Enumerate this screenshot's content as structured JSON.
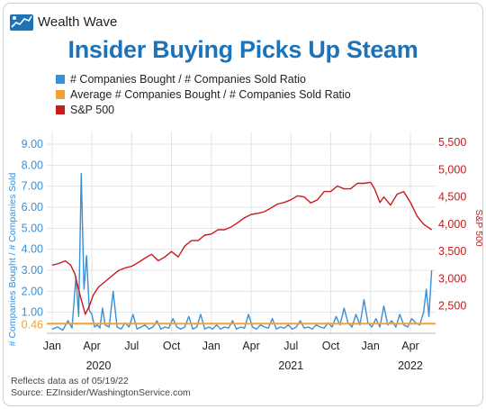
{
  "brand": {
    "name": "Wealth Wave",
    "logo": "wealth-wave-logo"
  },
  "title": "Insider Buying Picks Up Steam",
  "footnotes": {
    "note": "Reflects data as of 05/19/22",
    "source": "Source: EZInsider/WashingtonService.com"
  },
  "colors": {
    "ratio": "#3a8fd6",
    "average": "#f5a031",
    "sp500": "#c91a1a",
    "title": "#1e73b8"
  },
  "chart_data": {
    "type": "line",
    "title": "Insider Buying Picks Up Steam",
    "legend": {
      "placement": "top-left",
      "entries": [
        "# Companies Bought / # Companies Sold Ratio",
        "Average # Companies Bought / # Companies Sold Ratio",
        "S&P 500"
      ]
    },
    "ylabel_left": "# Companies Bought / # Companies Sold",
    "ylabel_right": "S&P 500",
    "y_left_ticks": [
      "9.00",
      "8.00",
      "7.00",
      "6.00",
      "5.00",
      "4.00",
      "3.00",
      "2.00",
      "1.00"
    ],
    "y_left_ticks_values": [
      9,
      8,
      7,
      6,
      5,
      4,
      3,
      2,
      1
    ],
    "y_left_highlight": {
      "label": "0.46",
      "value": 0.46
    },
    "y_right_ticks": [
      "5,500",
      "5,000",
      "4,500",
      "4,000",
      "3,500",
      "3,000",
      "2,500"
    ],
    "y_right_ticks_values": [
      5500,
      5000,
      4500,
      4000,
      3500,
      3000,
      2500
    ],
    "ylim_left": [
      0,
      9.6
    ],
    "ylim_right": [
      2000,
      5700
    ],
    "x_ticks": [
      "Jan",
      "Apr",
      "Jul",
      "Oct",
      "Jan",
      "Apr",
      "Jul",
      "Oct",
      "Jan",
      "Apr"
    ],
    "x_tick_values": [
      0,
      3,
      6,
      9,
      12,
      15,
      18,
      21,
      24,
      27
    ],
    "x_years": [
      {
        "label": "2020",
        "at": 3.5
      },
      {
        "label": "2021",
        "at": 18
      },
      {
        "label": "2022",
        "at": 27
      }
    ],
    "xlim": [
      -0.4,
      28.9
    ],
    "x_unit": "months since Jan 2020",
    "grid": true,
    "series": [
      {
        "name": "S&P 500",
        "axis": "right",
        "x": [
          0,
          0.5,
          1,
          1.4,
          1.7,
          2.1,
          2.5,
          2.8,
          3.1,
          3.5,
          4,
          4.5,
          5,
          5.5,
          6,
          6.5,
          7,
          7.5,
          8,
          8.5,
          9,
          9.5,
          10,
          10.5,
          11,
          11.5,
          12,
          12.5,
          13,
          13.5,
          14,
          14.5,
          15,
          15.5,
          16,
          16.5,
          17,
          17.5,
          18,
          18.5,
          19,
          19.5,
          20,
          20.5,
          21,
          21.5,
          22,
          22.5,
          23,
          23.5,
          24,
          24.3,
          24.7,
          25,
          25.5,
          26,
          26.5,
          27,
          27.5,
          28,
          28.3,
          28.6
        ],
        "values": [
          3250,
          3280,
          3330,
          3250,
          3100,
          2700,
          2350,
          2500,
          2700,
          2850,
          2950,
          3050,
          3150,
          3200,
          3230,
          3300,
          3380,
          3450,
          3330,
          3400,
          3500,
          3400,
          3600,
          3700,
          3700,
          3800,
          3820,
          3900,
          3900,
          3950,
          4030,
          4120,
          4180,
          4200,
          4230,
          4300,
          4370,
          4400,
          4450,
          4520,
          4500,
          4390,
          4450,
          4600,
          4600,
          4700,
          4650,
          4650,
          4750,
          4750,
          4770,
          4650,
          4400,
          4500,
          4350,
          4550,
          4600,
          4400,
          4150,
          4000,
          3950,
          3900
        ]
      },
      {
        "name": "# Companies Bought / # Companies Sold Ratio",
        "axis": "left",
        "x": [
          0,
          0.4,
          0.8,
          1.2,
          1.5,
          1.8,
          2.0,
          2.2,
          2.4,
          2.6,
          2.8,
          3.0,
          3.2,
          3.4,
          3.6,
          3.8,
          4.0,
          4.3,
          4.6,
          4.9,
          5.2,
          5.5,
          5.8,
          6.1,
          6.4,
          6.7,
          7.0,
          7.3,
          7.6,
          7.9,
          8.2,
          8.5,
          8.8,
          9.1,
          9.4,
          9.7,
          10,
          10.3,
          10.6,
          10.9,
          11.2,
          11.5,
          11.8,
          12.1,
          12.4,
          12.7,
          13,
          13.3,
          13.6,
          13.9,
          14.2,
          14.5,
          14.8,
          15.1,
          15.4,
          15.7,
          16,
          16.3,
          16.6,
          16.9,
          17.2,
          17.5,
          17.8,
          18.1,
          18.4,
          18.7,
          19,
          19.3,
          19.6,
          19.9,
          20.2,
          20.5,
          20.8,
          21.1,
          21.4,
          21.7,
          22,
          22.3,
          22.6,
          22.9,
          23.2,
          23.5,
          23.8,
          24.1,
          24.4,
          24.7,
          25,
          25.3,
          25.6,
          25.9,
          26.2,
          26.5,
          26.8,
          27.1,
          27.4,
          27.7,
          28,
          28.2,
          28.4,
          28.6
        ],
        "values": [
          0.2,
          0.3,
          0.15,
          0.6,
          0.25,
          2.7,
          0.8,
          7.6,
          2.1,
          3.7,
          1.1,
          0.9,
          0.3,
          0.4,
          0.25,
          1.2,
          0.4,
          0.3,
          2.0,
          0.3,
          0.2,
          0.5,
          0.3,
          0.9,
          0.2,
          0.3,
          0.4,
          0.2,
          0.3,
          0.6,
          0.2,
          0.3,
          0.25,
          0.7,
          0.3,
          0.2,
          0.3,
          0.8,
          0.2,
          0.3,
          0.9,
          0.2,
          0.3,
          0.2,
          0.4,
          0.2,
          0.3,
          0.25,
          0.6,
          0.2,
          0.3,
          0.25,
          0.9,
          0.3,
          0.2,
          0.4,
          0.3,
          0.25,
          0.7,
          0.2,
          0.3,
          0.25,
          0.4,
          0.2,
          0.3,
          0.6,
          0.25,
          0.3,
          0.2,
          0.4,
          0.3,
          0.25,
          0.5,
          0.3,
          0.8,
          0.4,
          1.2,
          0.5,
          0.3,
          0.9,
          0.4,
          1.6,
          0.5,
          0.3,
          0.7,
          0.3,
          1.3,
          0.4,
          0.6,
          0.3,
          0.9,
          0.4,
          0.3,
          0.7,
          0.5,
          0.4,
          1.0,
          2.1,
          0.8,
          3.0
        ]
      },
      {
        "name": "Average # Companies Bought / # Companies Sold Ratio",
        "axis": "left",
        "x": [
          -0.4,
          28.9
        ],
        "values": [
          0.46,
          0.46
        ]
      }
    ]
  }
}
